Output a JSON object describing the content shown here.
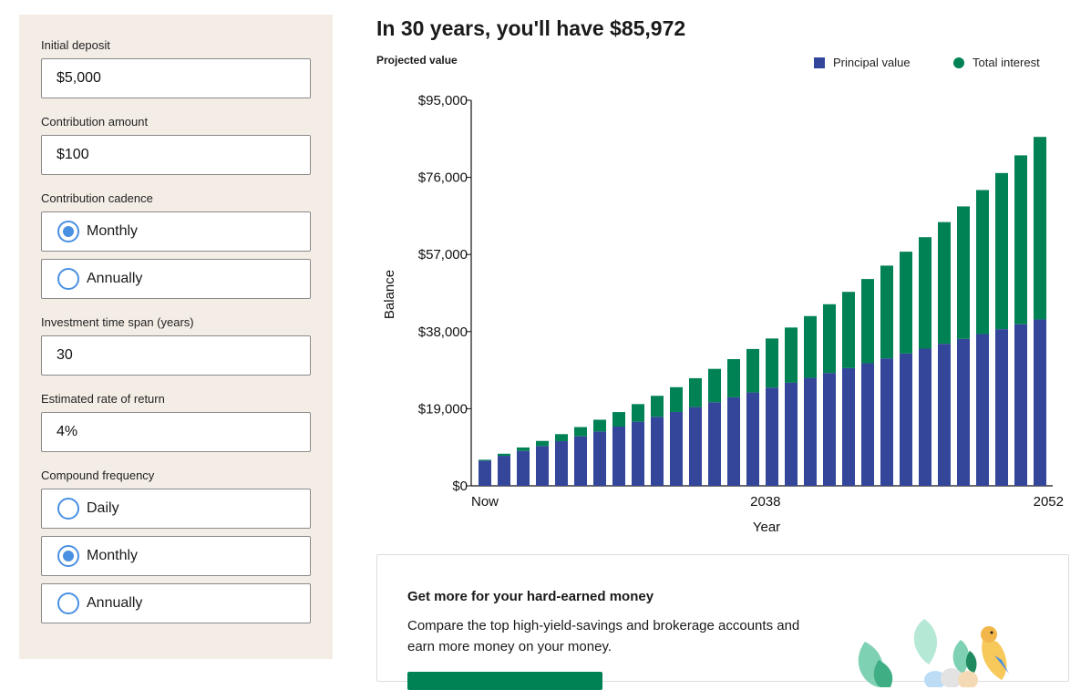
{
  "form": {
    "initial_deposit": {
      "label": "Initial deposit",
      "value": "$5,000"
    },
    "contribution_amount": {
      "label": "Contribution amount",
      "value": "$100"
    },
    "contribution_cadence": {
      "label": "Contribution cadence",
      "options": [
        "Monthly",
        "Annually"
      ],
      "selected": "Monthly"
    },
    "time_span": {
      "label": "Investment time span (years)",
      "value": "30"
    },
    "rate": {
      "label": "Estimated rate of return",
      "value": "4%"
    },
    "compound_frequency": {
      "label": "Compound frequency",
      "options": [
        "Daily",
        "Monthly",
        "Annually"
      ],
      "selected": "Monthly"
    }
  },
  "headline": "In 30 years, you'll have $85,972",
  "colors": {
    "principal": "#34469a",
    "interest": "#008254",
    "radio": "#4a90e2",
    "panel": "#f4ede6"
  },
  "chart_data": {
    "type": "bar",
    "stacked": true,
    "title": "Projected value",
    "xlabel": "Year",
    "ylabel": "Balance",
    "ylim": [
      0,
      95000
    ],
    "yticks": [
      "$0",
      "$19,000",
      "$38,000",
      "$57,000",
      "$76,000",
      "$95,000"
    ],
    "xticks": [
      "Now",
      "2038",
      "2052"
    ],
    "legend_position": "top-right",
    "categories": [
      1,
      2,
      3,
      4,
      5,
      6,
      7,
      8,
      9,
      10,
      11,
      12,
      13,
      14,
      15,
      16,
      17,
      18,
      19,
      20,
      21,
      22,
      23,
      24,
      25,
      26,
      27,
      28,
      29,
      30
    ],
    "series": [
      {
        "name": "Principal value",
        "values": [
          6200,
          7400,
          8600,
          9800,
          11000,
          12200,
          13400,
          14600,
          15800,
          17000,
          18200,
          19400,
          20600,
          21800,
          23000,
          24200,
          25400,
          26600,
          27800,
          29000,
          30200,
          31400,
          32600,
          33800,
          35000,
          36200,
          37400,
          38600,
          39800,
          41000
        ]
      },
      {
        "name": "Total interest",
        "values": [
          226,
          510,
          854,
          1262,
          1735,
          2276,
          2889,
          3574,
          4337,
          5179,
          6105,
          7117,
          8220,
          9416,
          10711,
          12106,
          13607,
          15219,
          16945,
          18790,
          20760,
          22858,
          25091,
          27463,
          29982,
          32651,
          35479,
          38470,
          41632,
          44972
        ]
      }
    ]
  },
  "promo": {
    "title": "Get more for your hard-earned money",
    "body": "Compare the top high-yield-savings and brokerage accounts and earn more money on your money."
  }
}
